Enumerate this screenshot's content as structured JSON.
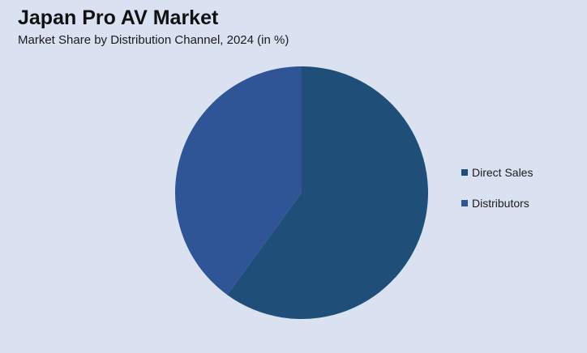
{
  "chart_data": {
    "type": "pie",
    "title": "Japan Pro AV Market",
    "subtitle": "Market Share by Distribution Channel, 2024 (in %)",
    "categories": [
      "Direct Sales",
      "Distributors"
    ],
    "values": [
      60,
      40
    ],
    "colors": [
      "#1f4e79",
      "#2f5597"
    ],
    "start_angle": "12 o'clock, clockwise",
    "legend_position": "right"
  }
}
